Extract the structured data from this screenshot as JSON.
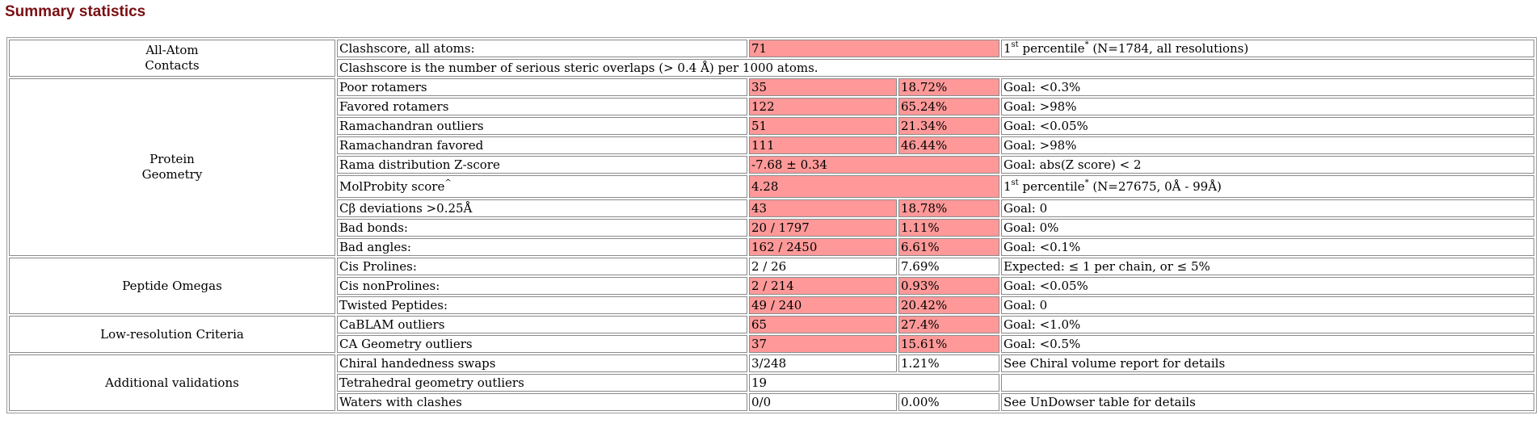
{
  "title": "Summary statistics",
  "colors": {
    "title": "#7a0f12",
    "bad_cell": "#ff9999"
  },
  "groups": {
    "all_atom": {
      "line1": "All-Atom",
      "line2": "Contacts"
    },
    "protein": {
      "line1": "Protein",
      "line2": "Geometry"
    },
    "peptide": "Peptide Omegas",
    "lowres": "Low-resolution Criteria",
    "additional": "Additional validations"
  },
  "rows": {
    "clashscore": {
      "label": "Clashscore, all atoms:",
      "value": "71",
      "pct_prefix": "1",
      "pct_sup": "st",
      "pct_word": " percentile",
      "pct_star": "*",
      "note": " (N=1784, all resolutions)"
    },
    "clash_desc": "Clashscore is the number of serious steric overlaps (> 0.4 Å) per 1000 atoms.",
    "poor_rot": {
      "label": "Poor rotamers",
      "value": "35",
      "percent": "18.72%",
      "goal": "Goal: <0.3%"
    },
    "fav_rot": {
      "label": "Favored rotamers",
      "value": "122",
      "percent": "65.24%",
      "goal": "Goal: >98%"
    },
    "rama_out": {
      "label": "Ramachandran outliers",
      "value": "51",
      "percent": "21.34%",
      "goal": "Goal: <0.05%"
    },
    "rama_fav": {
      "label": "Ramachandran favored",
      "value": "111",
      "percent": "46.44%",
      "goal": "Goal: >98%"
    },
    "rama_z": {
      "label": "Rama distribution Z-score",
      "value": "-7.68 ± 0.34",
      "goal": "Goal: abs(Z score) < 2"
    },
    "molprobity": {
      "label": "MolProbity score",
      "label_sup": "^",
      "value": "4.28",
      "pct_prefix": "1",
      "pct_sup": "st",
      "pct_word": " percentile",
      "pct_star": "*",
      "note": " (N=27675, 0Å - 99Å)"
    },
    "cbeta": {
      "label": "Cβ deviations >0.25Å",
      "value": "43",
      "percent": "18.78%",
      "goal": "Goal: 0"
    },
    "bad_bonds": {
      "label": "Bad bonds:",
      "value": "20 / 1797",
      "percent": "1.11%",
      "goal": "Goal: 0%"
    },
    "bad_angles": {
      "label": "Bad angles:",
      "value": "162 / 2450",
      "percent": "6.61%",
      "goal": "Goal: <0.1%"
    },
    "cis_pro": {
      "label": "Cis Prolines:",
      "value": "2 / 26",
      "percent": "7.69%",
      "goal": "Expected:  ≤ 1 per chain, or  ≤ 5%"
    },
    "cis_nonpro": {
      "label": "Cis nonProlines:",
      "value": "2 / 214",
      "percent": "0.93%",
      "goal": "Goal: <0.05%"
    },
    "twisted": {
      "label": "Twisted Peptides:",
      "value": "49 / 240",
      "percent": "20.42%",
      "goal": "Goal: 0"
    },
    "cablam": {
      "label": "CaBLAM outliers",
      "value": "65",
      "percent": "27.4%",
      "goal": "Goal: <1.0%"
    },
    "ca_geom": {
      "label": "CA Geometry outliers",
      "value": "37",
      "percent": "15.61%",
      "goal": "Goal: <0.5%"
    },
    "chiral": {
      "label": "Chiral handedness swaps",
      "value": "3/248",
      "percent": "1.21%",
      "goal": "See Chiral volume report for details"
    },
    "tetra": {
      "label": "Tetrahedral geometry outliers",
      "value": "19",
      "goal": ""
    },
    "waters": {
      "label": "Waters with clashes",
      "value": "0/0",
      "percent": "0.00%",
      "goal": "See UnDowser table for details"
    }
  }
}
